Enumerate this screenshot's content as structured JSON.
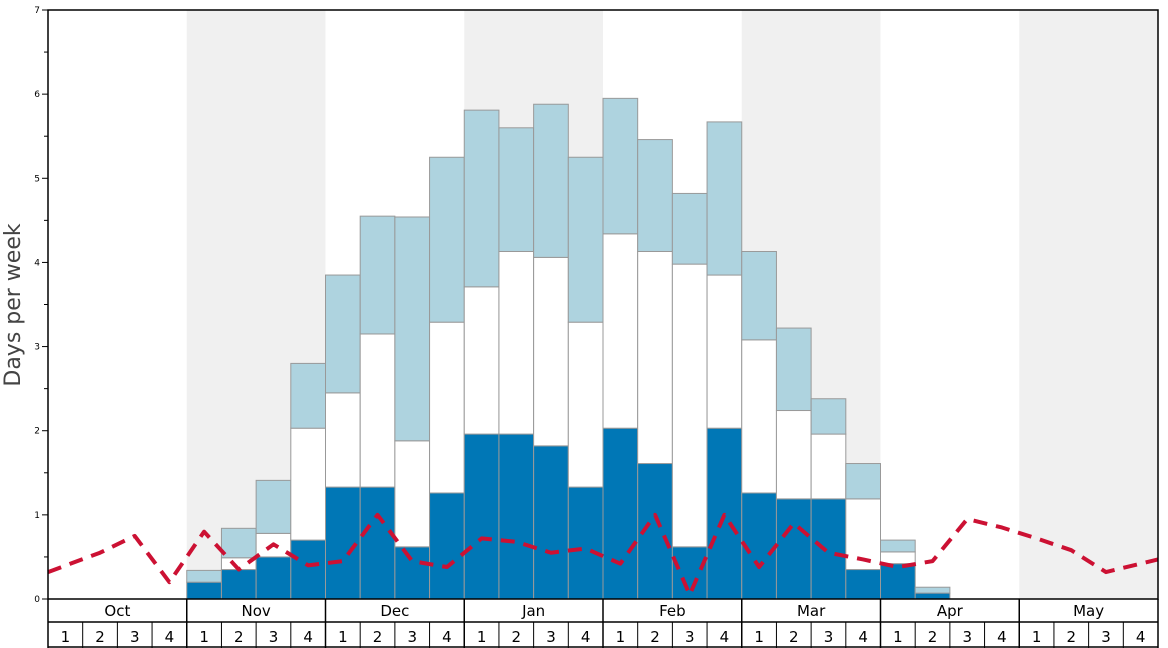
{
  "chart_data": {
    "type": "bar",
    "ylabel": "Days per week",
    "ylim": [
      0,
      7
    ],
    "yticks": [
      "0",
      "1",
      "2",
      "3",
      "4",
      "5",
      "6",
      "7"
    ],
    "months": [
      "Oct",
      "Nov",
      "Dec",
      "Jan",
      "Feb",
      "Mar",
      "Apr",
      "May"
    ],
    "week_labels": [
      "1",
      "2",
      "3",
      "4"
    ],
    "colors": {
      "dark_bar": "#0077b6",
      "mid_bar": "#ffffff",
      "light_bar": "#aed3df",
      "bar_stroke": "#999999",
      "line": "#cc1133",
      "shade": "#f0f0f0"
    },
    "stacked": true,
    "series": [
      {
        "values": [
          0,
          0,
          0,
          0,
          0.2,
          0.35,
          0.5,
          0.7,
          1.33,
          1.33,
          0.62,
          1.26,
          1.96,
          1.96,
          1.82,
          1.33,
          2.03,
          1.61,
          0.62,
          2.03,
          1.26,
          1.19,
          1.19,
          0.35,
          0.42,
          0.07,
          0,
          0,
          0,
          0,
          0,
          0
        ]
      },
      {
        "values": [
          0,
          0,
          0,
          0,
          0,
          0.14,
          0.28,
          1.33,
          1.12,
          1.82,
          1.26,
          2.03,
          1.75,
          2.17,
          2.24,
          1.96,
          2.31,
          2.52,
          3.36,
          1.82,
          1.82,
          1.05,
          0.77,
          0.84,
          0.14,
          0,
          0,
          0,
          0,
          0,
          0,
          0
        ]
      },
      {
        "values": [
          0,
          0,
          0,
          0,
          0.14,
          0.35,
          0.63,
          0.77,
          1.4,
          1.4,
          2.66,
          1.96,
          2.1,
          1.47,
          1.82,
          1.96,
          1.61,
          1.33,
          0.84,
          1.82,
          1.05,
          0.98,
          0.42,
          0.42,
          0.14,
          0.07,
          0,
          0,
          0,
          0,
          0,
          0
        ]
      },
      {
        "values": [
          0.32,
          0.55,
          0.75,
          0.2,
          0.8,
          0.35,
          0.65,
          0.4,
          0.45,
          1.0,
          0.45,
          0.38,
          0.72,
          0.68,
          0.55,
          0.6,
          0.42,
          1.0,
          0.05,
          1.0,
          0.38,
          0.9,
          0.55,
          0.47,
          0.38,
          0.45,
          0.95,
          0.85,
          0.72,
          0.58,
          0.32,
          0.47
        ]
      }
    ]
  }
}
